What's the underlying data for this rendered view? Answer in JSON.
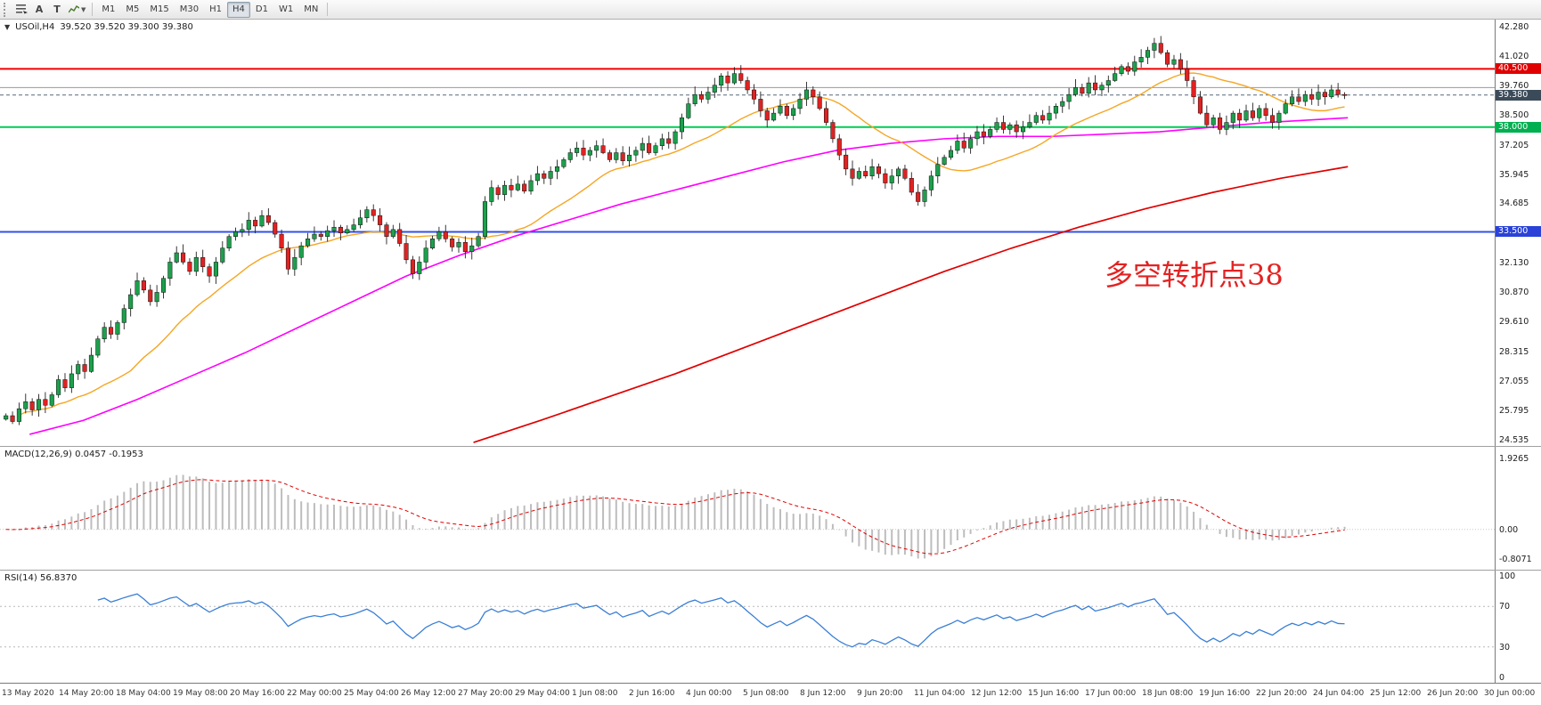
{
  "toolbar": {
    "timeframes": [
      "M1",
      "M5",
      "M15",
      "M30",
      "H1",
      "H4",
      "D1",
      "W1",
      "MN"
    ],
    "active_timeframe": "H4",
    "tool_a_label": "A",
    "tool_t_label": "T"
  },
  "chart_data": {
    "type": "candlestick",
    "symbol_title": "USOil,H4",
    "ohlc_text": "39.520 39.520 39.300 39.380",
    "annotation": {
      "text": "多空转折点38",
      "color": "#e32222"
    },
    "price_range": [
      24.3,
      42.62
    ],
    "price_ticks": [
      "42.280",
      "41.020",
      "39.760",
      "38.500",
      "37.205",
      "35.945",
      "34.685",
      "32.130",
      "30.870",
      "29.610",
      "28.315",
      "27.055",
      "25.795",
      "24.535"
    ],
    "levels": [
      {
        "name": "resistance-line-40.5",
        "value": 40.5,
        "color": "#f00000",
        "width": 2,
        "badge": "40.500",
        "badge_bg": "#e00000"
      },
      {
        "name": "gray-line-39.7",
        "value": 39.7,
        "color": "#9a9a9a",
        "width": 1
      },
      {
        "name": "current-price-line",
        "value": 39.38,
        "color": "#56687a",
        "width": 1,
        "dash": "4 3",
        "badge": "39.380",
        "badge_bg": "#3b4a59"
      },
      {
        "name": "support-line-38",
        "value": 38.0,
        "color": "#00cc55",
        "width": 2,
        "badge": "38.000",
        "badge_bg": "#00b050"
      },
      {
        "name": "support-line-33.5",
        "value": 33.5,
        "color": "#3050e8",
        "width": 2,
        "badge": "33.500",
        "badge_bg": "#2a42d8"
      }
    ],
    "candle_colors": {
      "up": "#1ca04c",
      "down": "#e02222",
      "wick": "#222222"
    },
    "first_open": 25.45,
    "closes": [
      25.6,
      25.35,
      25.9,
      26.2,
      25.85,
      26.3,
      26.05,
      26.5,
      27.15,
      26.8,
      27.4,
      27.8,
      27.5,
      28.2,
      28.9,
      29.4,
      29.1,
      29.6,
      30.2,
      30.8,
      31.4,
      31.0,
      30.5,
      30.9,
      31.5,
      32.2,
      32.6,
      32.2,
      31.8,
      32.4,
      32.0,
      31.6,
      32.2,
      32.8,
      33.3,
      33.5,
      33.6,
      34.0,
      33.75,
      34.2,
      33.9,
      33.4,
      32.8,
      31.9,
      32.4,
      32.9,
      33.2,
      33.4,
      33.3,
      33.55,
      33.7,
      33.45,
      33.6,
      33.8,
      34.1,
      34.45,
      34.2,
      33.8,
      33.3,
      33.6,
      33.0,
      32.3,
      31.7,
      32.2,
      32.8,
      33.2,
      33.5,
      33.2,
      32.85,
      33.05,
      32.65,
      32.9,
      33.3,
      34.8,
      35.4,
      35.1,
      35.5,
      35.3,
      35.55,
      35.25,
      35.7,
      36.0,
      35.8,
      36.1,
      36.3,
      36.6,
      36.9,
      37.1,
      36.8,
      37.0,
      37.2,
      36.9,
      36.6,
      36.9,
      36.55,
      36.8,
      37.0,
      37.3,
      36.9,
      37.2,
      37.5,
      37.3,
      37.8,
      38.4,
      39.0,
      39.4,
      39.2,
      39.5,
      39.8,
      40.2,
      39.9,
      40.3,
      40.0,
      39.6,
      39.2,
      38.7,
      38.3,
      38.6,
      38.9,
      38.5,
      38.8,
      39.2,
      39.6,
      39.3,
      38.8,
      38.2,
      37.5,
      36.8,
      36.2,
      35.8,
      36.1,
      35.9,
      36.3,
      36.0,
      35.6,
      35.9,
      36.2,
      35.8,
      35.2,
      34.8,
      35.3,
      35.9,
      36.4,
      36.7,
      37.0,
      37.4,
      37.1,
      37.5,
      37.8,
      37.6,
      37.9,
      38.2,
      37.9,
      38.1,
      37.8,
      38.0,
      38.2,
      38.5,
      38.3,
      38.6,
      38.9,
      39.1,
      39.4,
      39.7,
      39.45,
      39.9,
      39.6,
      39.8,
      40.0,
      40.3,
      40.6,
      40.4,
      40.8,
      41.0,
      41.3,
      41.6,
      41.2,
      40.7,
      40.9,
      40.5,
      40.0,
      39.3,
      38.6,
      38.1,
      38.4,
      37.9,
      38.2,
      38.6,
      38.3,
      38.7,
      38.4,
      38.8,
      38.5,
      38.2,
      38.6,
      39.0,
      39.3,
      39.1,
      39.4,
      39.2,
      39.5,
      39.3,
      39.6,
      39.4,
      39.38
    ],
    "ma": {
      "fast_period": 20,
      "fast_color": "#f5a623",
      "mid_color": "#ff00ff",
      "slow_color": "#e00000",
      "mid_points": [
        [
          0.02,
          24.8
        ],
        [
          0.06,
          25.4
        ],
        [
          0.1,
          26.3
        ],
        [
          0.14,
          27.3
        ],
        [
          0.18,
          28.3
        ],
        [
          0.22,
          29.4
        ],
        [
          0.26,
          30.5
        ],
        [
          0.3,
          31.6
        ],
        [
          0.34,
          32.5
        ],
        [
          0.38,
          33.3
        ],
        [
          0.42,
          34.0
        ],
        [
          0.46,
          34.7
        ],
        [
          0.5,
          35.3
        ],
        [
          0.54,
          35.9
        ],
        [
          0.58,
          36.5
        ],
        [
          0.62,
          37.0
        ],
        [
          0.66,
          37.3
        ],
        [
          0.7,
          37.5
        ],
        [
          0.74,
          37.6
        ],
        [
          0.78,
          37.6
        ],
        [
          0.82,
          37.7
        ],
        [
          0.86,
          37.8
        ],
        [
          0.9,
          38.0
        ],
        [
          0.94,
          38.2
        ],
        [
          1.0,
          38.4
        ]
      ],
      "slow_points": [
        [
          0.35,
          24.45
        ],
        [
          0.4,
          25.4
        ],
        [
          0.45,
          26.4
        ],
        [
          0.5,
          27.4
        ],
        [
          0.55,
          28.5
        ],
        [
          0.6,
          29.6
        ],
        [
          0.65,
          30.7
        ],
        [
          0.7,
          31.8
        ],
        [
          0.75,
          32.8
        ],
        [
          0.8,
          33.7
        ],
        [
          0.85,
          34.5
        ],
        [
          0.9,
          35.2
        ],
        [
          0.95,
          35.8
        ],
        [
          1.0,
          36.3
        ]
      ]
    },
    "macd": {
      "label": "MACD(12,26,9) 0.0457 -0.1953",
      "fast": 12,
      "slow": 26,
      "signal": 9,
      "scale": [
        "1.9265",
        "0.00",
        "-0.8071"
      ],
      "range": [
        -0.95,
        2.1
      ],
      "histogram_color": "#bdbdbd",
      "signal_color": "#e00000"
    },
    "rsi": {
      "label": "RSI(14) 56.8370",
      "period": 14,
      "scale": [
        "100",
        "70",
        "30",
        "0"
      ],
      "levels": [
        70,
        30
      ],
      "range": [
        0,
        100
      ],
      "line_color": "#3a7fd5"
    },
    "x_labels": [
      "13 May 2020",
      "14 May 20:00",
      "18 May 04:00",
      "19 May 08:00",
      "20 May 16:00",
      "22 May 00:00",
      "25 May 04:00",
      "26 May 12:00",
      "27 May 20:00",
      "29 May 04:00",
      "1 Jun 08:00",
      "2 Jun 16:00",
      "4 Jun 00:00",
      "5 Jun 08:00",
      "8 Jun 12:00",
      "9 Jun 20:00",
      "11 Jun 04:00",
      "12 Jun 12:00",
      "15 Jun 16:00",
      "17 Jun 00:00",
      "18 Jun 08:00",
      "19 Jun 16:00",
      "22 Jun 20:00",
      "24 Jun 04:00",
      "25 Jun 12:00",
      "26 Jun 20:00",
      "30 Jun 00:00"
    ]
  }
}
